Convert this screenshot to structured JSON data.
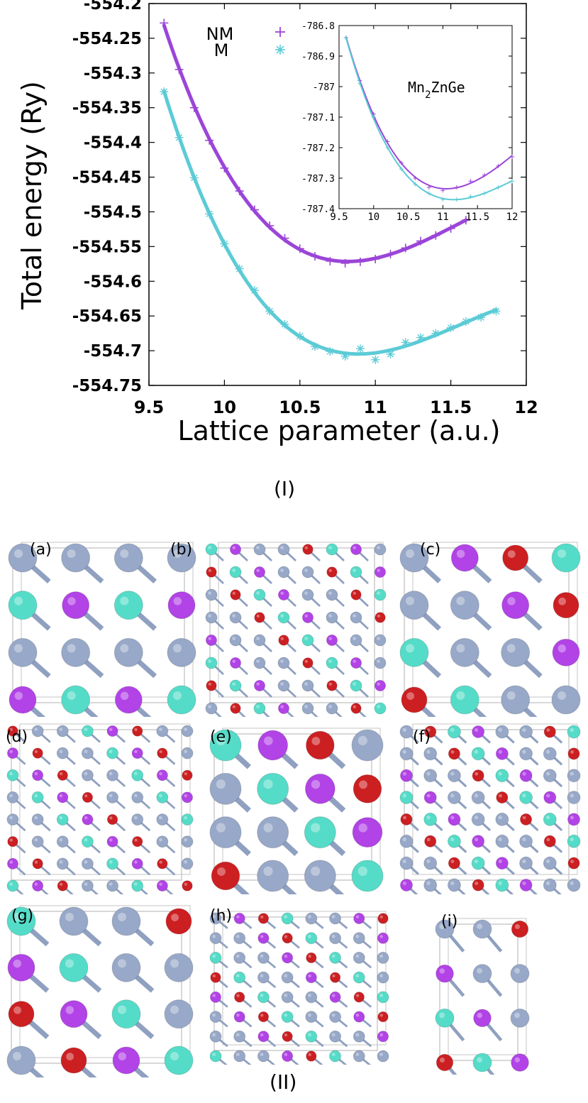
{
  "colors": {
    "nm": "#9b45d8",
    "m": "#5ccbd6",
    "mn": "#97a8c8",
    "zn": "#b243e6",
    "ge": "#cc1f22",
    "x": "#55dcc8"
  },
  "part1_label": "(I)",
  "part2_label": "(II)",
  "structures": [
    {
      "label": "(a)"
    },
    {
      "label": "(b)"
    },
    {
      "label": "(c)"
    },
    {
      "label": "(d)"
    },
    {
      "label": "(e)"
    },
    {
      "label": "(f)"
    },
    {
      "label": "(g)"
    },
    {
      "label": "(h)"
    },
    {
      "label": "(i)"
    }
  ],
  "chart_data": [
    {
      "type": "scatter",
      "xlabel": "Lattice parameter (a.u.)",
      "ylabel": "Total energy (Ry)",
      "xlim": [
        9.5,
        12
      ],
      "ylim": [
        -554.75,
        -554.2
      ],
      "xticks": [
        "9.5",
        "10",
        "10.5",
        "11",
        "11.5",
        "12"
      ],
      "yticks": [
        "-554.2",
        "-554.25",
        "-554.3",
        "-554.35",
        "-554.4",
        "-554.45",
        "-554.5",
        "-554.55",
        "-554.6",
        "-554.65",
        "-554.7",
        "-554.75"
      ],
      "legend_position": "top-left",
      "series": [
        {
          "name": "NM",
          "marker": "+",
          "color": "#9b45d8",
          "x": [
            9.6,
            9.7,
            9.8,
            9.9,
            10.0,
            10.1,
            10.2,
            10.3,
            10.4,
            10.5,
            10.6,
            10.7,
            10.8,
            10.9,
            11.0,
            11.1,
            11.2,
            11.3,
            11.4,
            11.5,
            11.6
          ],
          "y": [
            -554.228,
            -554.295,
            -554.35,
            -554.397,
            -554.437,
            -554.47,
            -554.497,
            -554.52,
            -554.538,
            -554.553,
            -554.564,
            -554.571,
            -554.574,
            -554.572,
            -554.568,
            -554.561,
            -554.552,
            -554.542,
            -554.534,
            -554.524,
            -554.512
          ]
        },
        {
          "name": "M",
          "marker": "*",
          "color": "#5ccbd6",
          "x": [
            9.6,
            9.7,
            9.8,
            9.9,
            10.0,
            10.1,
            10.2,
            10.3,
            10.4,
            10.5,
            10.6,
            10.7,
            10.8,
            10.9,
            11.0,
            11.1,
            11.2,
            11.3,
            11.4,
            11.5,
            11.6,
            11.7,
            11.8
          ],
          "y": [
            -554.327,
            -554.393,
            -554.451,
            -554.503,
            -554.546,
            -554.582,
            -554.613,
            -554.643,
            -554.662,
            -554.679,
            -554.694,
            -554.701,
            -554.708,
            -554.697,
            -554.713,
            -554.705,
            -554.688,
            -554.681,
            -554.675,
            -554.667,
            -554.658,
            -554.652,
            -554.643
          ]
        }
      ]
    },
    {
      "type": "line",
      "annotation": "Mn2ZnGe",
      "xlim": [
        9.5,
        12
      ],
      "ylim": [
        -787.4,
        -786.8
      ],
      "xticks": [
        "9.5",
        "10",
        "10.5",
        "11",
        "11.5",
        "12"
      ],
      "yticks": [
        "-786.8",
        "-786.9",
        "-787",
        "-787.1",
        "-787.2",
        "-787.3",
        "-787.4"
      ],
      "series": [
        {
          "color": "#9b45d8",
          "x": [
            9.6,
            9.8,
            10.0,
            10.2,
            10.4,
            10.6,
            10.8,
            11.0,
            11.2,
            11.4,
            11.6,
            11.8,
            12.0
          ],
          "y": [
            -786.84,
            -786.98,
            -787.09,
            -787.18,
            -787.25,
            -787.3,
            -787.33,
            -787.34,
            -787.33,
            -787.31,
            -787.29,
            -787.26,
            -787.23
          ]
        },
        {
          "color": "#5ccbd6",
          "x": [
            9.6,
            9.8,
            10.0,
            10.2,
            10.4,
            10.6,
            10.8,
            11.0,
            11.2,
            11.4,
            11.6,
            11.8,
            12.0
          ],
          "y": [
            -786.84,
            -786.99,
            -787.1,
            -787.2,
            -787.27,
            -787.32,
            -787.35,
            -787.37,
            -787.37,
            -787.36,
            -787.35,
            -787.33,
            -787.31
          ]
        }
      ]
    }
  ]
}
